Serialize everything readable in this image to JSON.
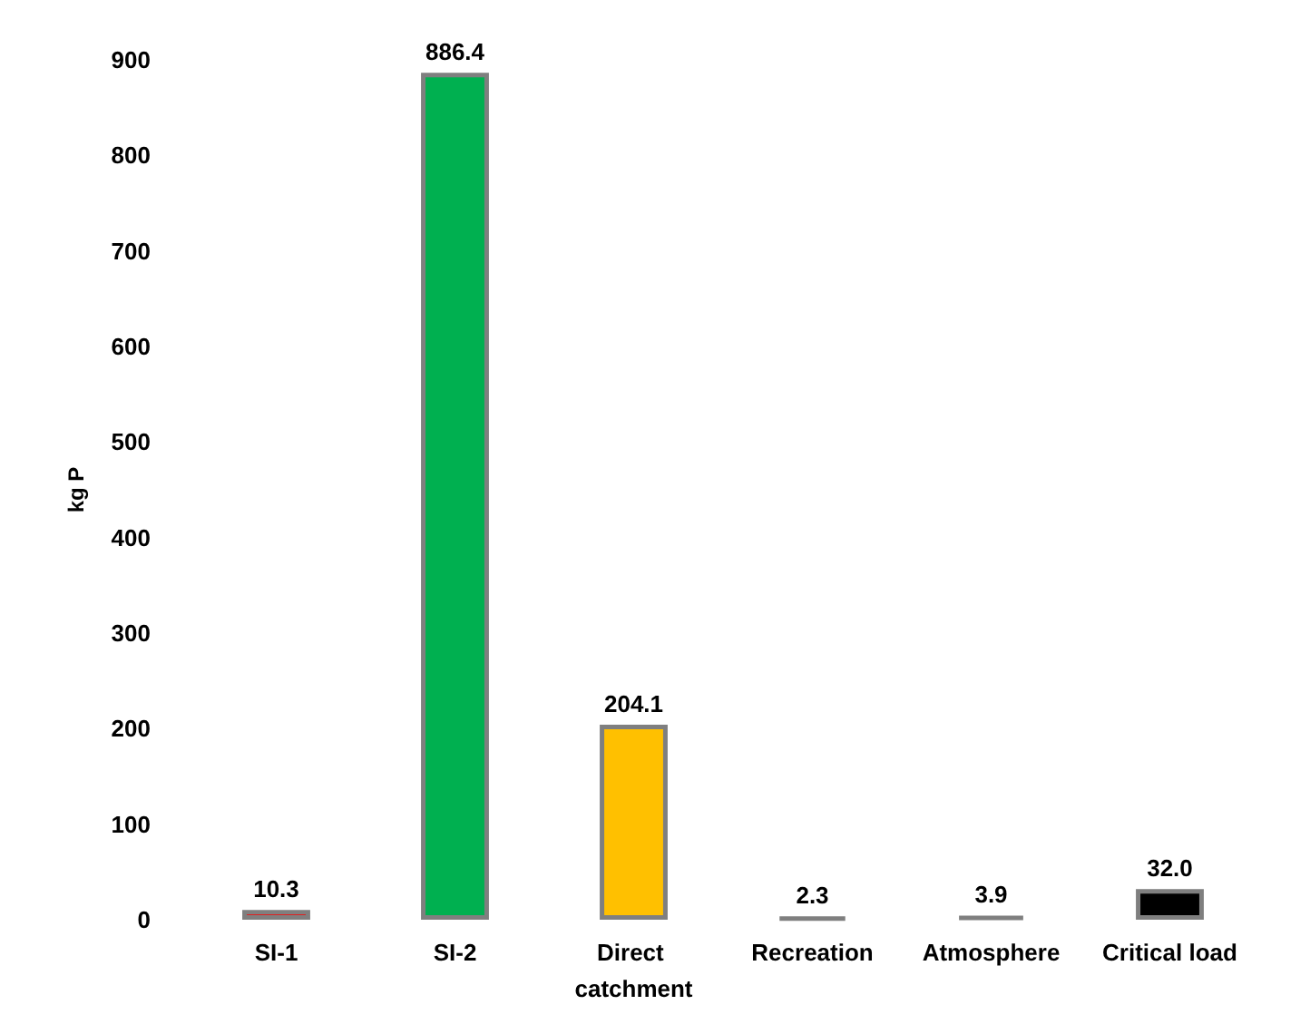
{
  "chart_data": {
    "type": "bar",
    "ylabel": "kg P",
    "categories": [
      "SI-1",
      "SI-2",
      "Direct catchment",
      "Recreation",
      "Atmosphere",
      "Critical load"
    ],
    "values": [
      10.3,
      886.4,
      204.1,
      2.3,
      3.9,
      32.0
    ],
    "value_labels": [
      "10.3",
      "886.4",
      "204.1",
      "2.3",
      "3.9",
      "32.0"
    ],
    "colors": [
      "#ff0000",
      "#00b050",
      "#ffc000",
      "#7f7f7f",
      "#7f7f7f",
      "#000000"
    ],
    "ylim": [
      0,
      900
    ],
    "yticks": [
      0,
      100,
      200,
      300,
      400,
      500,
      600,
      700,
      800,
      900
    ],
    "grid": false
  }
}
